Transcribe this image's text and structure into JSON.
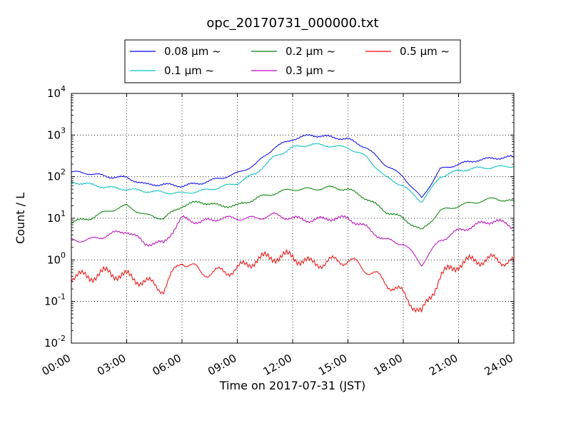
{
  "chart_data": {
    "type": "line",
    "title": "opc_20170731_000000.txt",
    "xlabel": "Time on 2017-07-31 (JST)",
    "ylabel": "Count / L",
    "y_scale": "log",
    "ylim": [
      0.01,
      10000
    ],
    "xlim": [
      "2017-07-31 00:00",
      "2017-08-01 00:00"
    ],
    "grid": true,
    "legend_position": "top-center",
    "x_ticks": [
      "00:00",
      "03:00",
      "06:00",
      "09:00",
      "12:00",
      "15:00",
      "18:00",
      "21:00",
      "24:00"
    ],
    "y_ticks": [
      {
        "base": "10",
        "exp": "-2"
      },
      {
        "base": "10",
        "exp": "-1"
      },
      {
        "base": "10",
        "exp": "0"
      },
      {
        "base": "10",
        "exp": "1"
      },
      {
        "base": "10",
        "exp": "2"
      },
      {
        "base": "10",
        "exp": "3"
      },
      {
        "base": "10",
        "exp": "4"
      }
    ],
    "x": [
      "00:00",
      "01:00",
      "02:00",
      "03:00",
      "04:00",
      "05:00",
      "06:00",
      "07:00",
      "08:00",
      "09:00",
      "10:00",
      "11:00",
      "12:00",
      "13:00",
      "14:00",
      "15:00",
      "16:00",
      "17:00",
      "18:00",
      "19:00",
      "20:00",
      "21:00",
      "22:00",
      "23:00",
      "24:00"
    ],
    "series": [
      {
        "name": "0.08 μm ~",
        "color": "#0000ff",
        "values": [
          130,
          120,
          100,
          95,
          65,
          65,
          60,
          70,
          90,
          120,
          200,
          500,
          800,
          1000,
          900,
          800,
          500,
          200,
          100,
          30,
          150,
          200,
          250,
          280,
          300
        ]
      },
      {
        "name": "0.1 μm ~",
        "color": "#00bfbf",
        "values": [
          75,
          65,
          55,
          50,
          45,
          42,
          40,
          45,
          55,
          70,
          120,
          300,
          500,
          600,
          550,
          500,
          300,
          100,
          60,
          25,
          100,
          140,
          160,
          170,
          180
        ]
      },
      {
        "name": "0.2 μm ~",
        "color": "#008000",
        "values": [
          8,
          10,
          15,
          20,
          12,
          10,
          20,
          25,
          20,
          20,
          30,
          40,
          50,
          50,
          55,
          50,
          30,
          15,
          10,
          5,
          15,
          20,
          25,
          30,
          25
        ]
      },
      {
        "name": "0.3 μm ~",
        "color": "#bf00bf",
        "values": [
          3,
          3,
          4,
          5,
          2.5,
          2.5,
          10,
          8,
          10,
          10,
          10,
          12,
          10,
          9,
          10,
          10,
          6,
          3,
          2.5,
          0.8,
          3,
          5,
          7,
          9,
          6
        ]
      },
      {
        "name": "0.5 μm ~",
        "color": "#ff0000",
        "values": [
          0.4,
          0.4,
          0.5,
          0.4,
          0.3,
          0.2,
          1.0,
          0.5,
          0.5,
          0.6,
          1.0,
          1.2,
          1.2,
          0.8,
          0.9,
          1.0,
          0.6,
          0.3,
          0.15,
          0.05,
          0.4,
          0.8,
          1.0,
          1.0,
          0.9
        ]
      }
    ]
  }
}
